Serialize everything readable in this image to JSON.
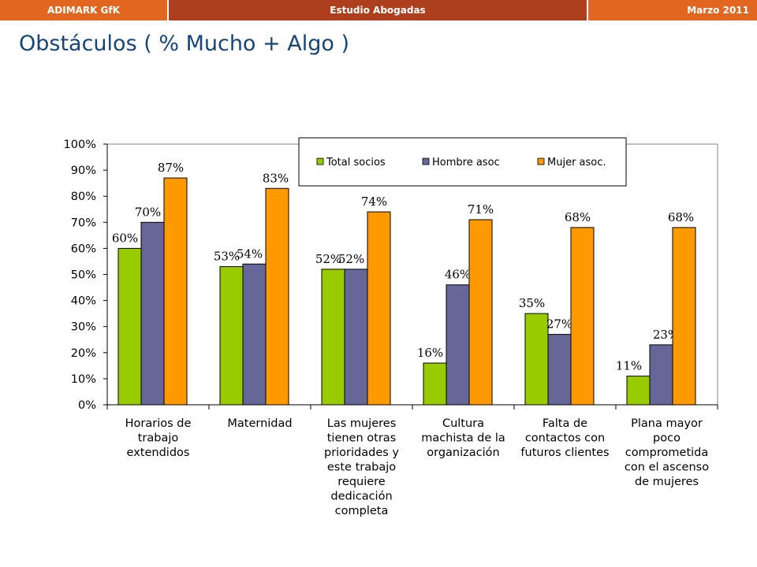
{
  "header": {
    "left": "ADIMARK GfK",
    "center": "Estudio Abogadas",
    "right": "Marzo 2011"
  },
  "page_title": "Obstáculos ( % Mucho + Algo )",
  "colors": {
    "header_light": "#e2661f",
    "header_dark": "#ad3f1e",
    "title": "#15457a",
    "series_total": "#99cc00",
    "series_hombre": "#666699",
    "series_mujer": "#ff9900"
  },
  "chart_data": {
    "type": "bar",
    "title": "",
    "xlabel": "",
    "ylabel": "",
    "ylim": [
      0,
      100
    ],
    "y_ticks": [
      "0%",
      "10%",
      "20%",
      "30%",
      "40%",
      "50%",
      "60%",
      "70%",
      "80%",
      "90%",
      "100%"
    ],
    "grid": false,
    "legend_position": "top-right",
    "categories": [
      [
        "Horarios de",
        "trabajo",
        "extendidos"
      ],
      [
        "Maternidad"
      ],
      [
        "Las mujeres",
        "tienen otras",
        "prioridades y",
        "este trabajo",
        "requiere",
        "dedicación",
        "completa"
      ],
      [
        "Cultura",
        "machista de la",
        "organización"
      ],
      [
        "Falta de",
        "contactos con",
        "futuros clientes"
      ],
      [
        "Plana mayor",
        "poco",
        "comprometida",
        "con el ascenso",
        "de mujeres"
      ]
    ],
    "series": [
      {
        "name": "Total socios",
        "color": "#99cc00",
        "values": [
          60,
          53,
          52,
          16,
          35,
          11
        ],
        "labels": [
          "60%",
          "53%",
          "52%",
          "16%",
          "35%",
          "11%"
        ]
      },
      {
        "name": "Hombre asoc",
        "color": "#666699",
        "values": [
          70,
          54,
          52,
          46,
          27,
          23
        ],
        "labels": [
          "70%",
          "54%",
          "52%",
          "46%",
          "27%",
          "23%"
        ]
      },
      {
        "name": "Mujer asoc.",
        "color": "#ff9900",
        "values": [
          87,
          83,
          74,
          71,
          68,
          68
        ],
        "labels": [
          "87%",
          "83%",
          "74%",
          "71%",
          "68%",
          "68%"
        ]
      }
    ]
  }
}
